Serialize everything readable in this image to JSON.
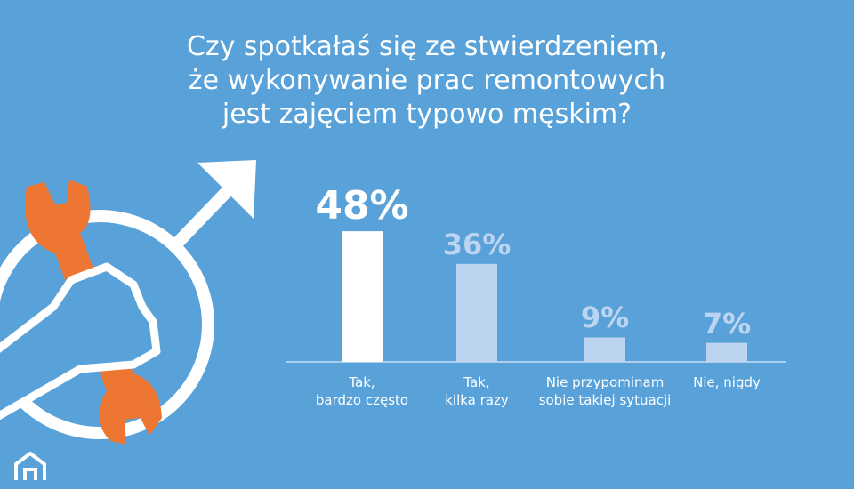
{
  "chart_data": {
    "type": "bar",
    "title": "Czy spotkałaś się ze stwierdzeniem,\nże wykonywanie prac remontowych\njest zajęciem typowo męskim?",
    "categories": [
      "Tak,\nbardzo często",
      "Tak,\nkilka razy",
      "Nie przypominam\nsobie takiej sytuacji",
      "Nie, nigdy"
    ],
    "values": [
      48,
      36,
      9,
      7
    ],
    "value_labels": [
      "48%",
      "36%",
      "9%",
      "7%"
    ],
    "colors": [
      "#ffffff",
      "#bcd4f0",
      "#bcd4f0",
      "#bcd4f0"
    ]
  }
}
